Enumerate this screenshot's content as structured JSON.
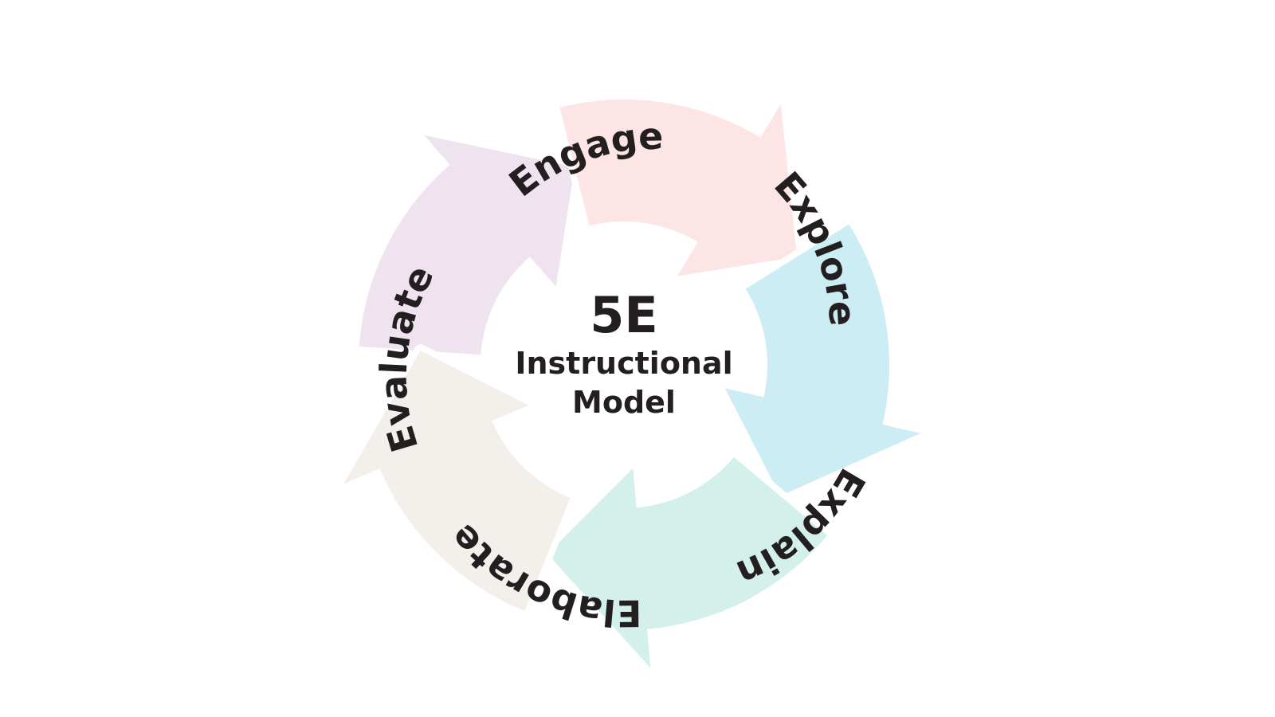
{
  "diagram": {
    "center": {
      "title": "5E",
      "subtitle_line1": "Instructional",
      "subtitle_line2": "Model"
    },
    "stages": [
      {
        "label": "Engage",
        "color": "#efe3f0"
      },
      {
        "label": "Explore",
        "color": "#fde5e6"
      },
      {
        "label": "Explain",
        "color": "#cdedf4"
      },
      {
        "label": "Elaborate",
        "color": "#d3f0ea"
      },
      {
        "label": "Evaluate",
        "color": "#f3efea"
      }
    ]
  }
}
